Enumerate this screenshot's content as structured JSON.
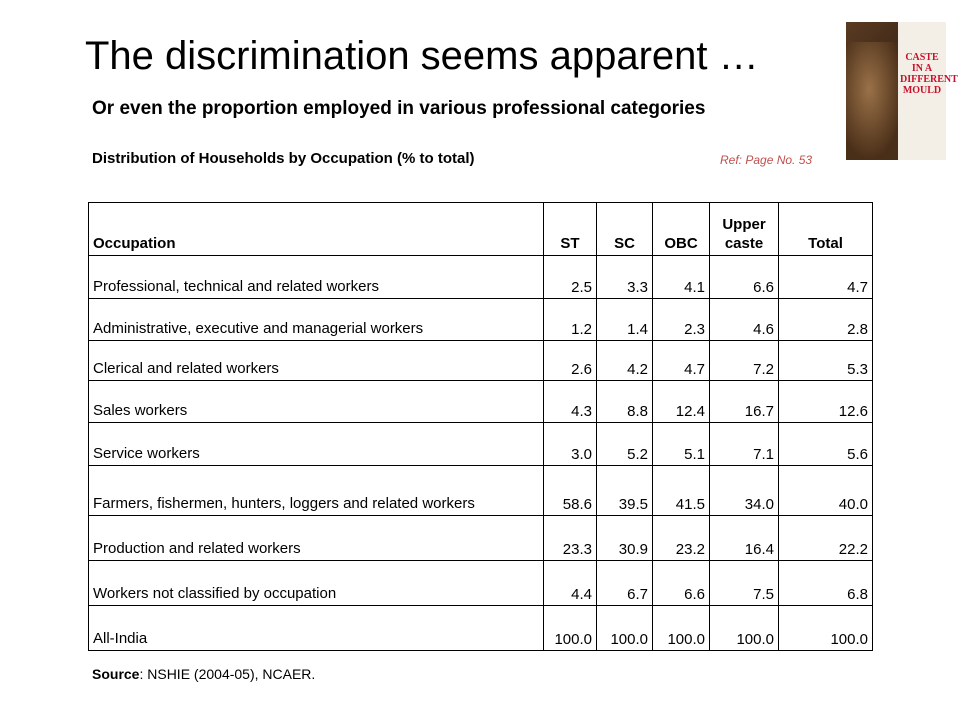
{
  "header": {
    "title": "The discrimination seems apparent …",
    "subtitle": "Or even the proportion employed in various professional categories"
  },
  "caption": {
    "text": "Distribution of Households by Occupation (% to total)",
    "ref": "Ref: Page No. 53"
  },
  "book": {
    "title": "CASTE IN A DIFFERENT MOULD"
  },
  "table": {
    "columns": [
      "Occupation",
      "ST",
      "SC",
      "OBC",
      "Upper caste",
      "Total"
    ],
    "rows": [
      [
        "Professional, technical and related workers",
        "2.5",
        "3.3",
        "4.1",
        "6.6",
        "4.7"
      ],
      [
        "Administrative, executive and managerial workers",
        "1.2",
        "1.4",
        "2.3",
        "4.6",
        "2.8"
      ],
      [
        "Clerical and related workers",
        "2.6",
        "4.2",
        "4.7",
        "7.2",
        "5.3"
      ],
      [
        "Sales workers",
        "4.3",
        "8.8",
        "12.4",
        "16.7",
        "12.6"
      ],
      [
        "Service workers",
        "3.0",
        "5.2",
        "5.1",
        "7.1",
        "5.6"
      ],
      [
        "Farmers, fishermen, hunters, loggers and related workers",
        "58.6",
        "39.5",
        "41.5",
        "34.0",
        "40.0"
      ],
      [
        "Production and related workers",
        "23.3",
        "30.9",
        "23.2",
        "16.4",
        "22.2"
      ],
      [
        "Workers not classified by occupation",
        "4.4",
        "6.7",
        "6.6",
        "7.5",
        "6.8"
      ],
      [
        "All-India",
        "100.0",
        "100.0",
        "100.0",
        "100.0",
        "100.0"
      ]
    ]
  },
  "source": {
    "label": "Source",
    "text": ": NSHIE (2004-05), NCAER."
  }
}
